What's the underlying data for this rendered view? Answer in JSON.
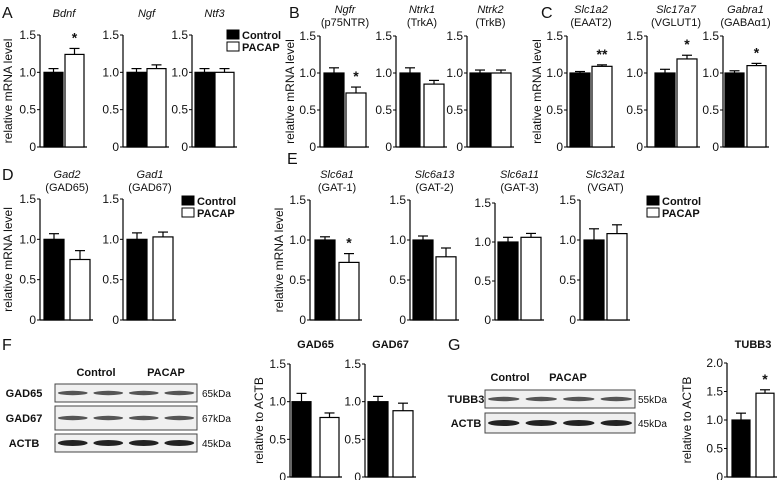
{
  "legend": {
    "control": "Control",
    "pacap": "PACAP"
  },
  "colors": {
    "control": "#000000",
    "pacap": "#ffffff"
  },
  "panels": [
    "A",
    "B",
    "C",
    "D",
    "E",
    "F",
    "G"
  ],
  "ylabels": {
    "mrna": "relative mRNA level",
    "actb": "relative to ACTB"
  },
  "blots": {
    "F": {
      "groups": [
        "Control",
        "PACAP"
      ],
      "rows": [
        {
          "label": "GAD65",
          "size": "65kDa"
        },
        {
          "label": "GAD67",
          "size": "67kDa"
        },
        {
          "label": "ACTB",
          "size": "45kDa"
        }
      ]
    },
    "G": {
      "groups": [
        "Control",
        "PACAP"
      ],
      "rows": [
        {
          "label": "TUBB3",
          "size": "55kDa"
        },
        {
          "label": "ACTB",
          "size": "45kDa"
        }
      ]
    }
  },
  "chart_data": [
    {
      "type": "bar",
      "panel": "A",
      "title": "Bdnf",
      "subtitle": "",
      "ylabel": "relative mRNA level",
      "ylim": [
        0,
        1.5
      ],
      "yticks": [
        "0",
        "0.5",
        "1.0",
        "1.5"
      ],
      "categories": [
        "Control",
        "PACAP"
      ],
      "values": [
        1.0,
        1.24
      ],
      "errors": [
        0.05,
        0.08
      ],
      "significance": "*"
    },
    {
      "type": "bar",
      "panel": "A",
      "title": "Ngf",
      "subtitle": "",
      "ylabel": "",
      "ylim": [
        0,
        1.5
      ],
      "yticks": [
        "0",
        "0.5",
        "1.0",
        "1.5"
      ],
      "categories": [
        "Control",
        "PACAP"
      ],
      "values": [
        1.0,
        1.05
      ],
      "errors": [
        0.05,
        0.05
      ],
      "significance": ""
    },
    {
      "type": "bar",
      "panel": "A",
      "title": "Ntf3",
      "subtitle": "",
      "ylabel": "",
      "ylim": [
        0,
        1.5
      ],
      "yticks": [
        "0",
        "0.5",
        "1.0",
        "1.5"
      ],
      "categories": [
        "Control",
        "PACAP"
      ],
      "values": [
        1.0,
        1.0
      ],
      "errors": [
        0.05,
        0.05
      ],
      "significance": ""
    },
    {
      "type": "bar",
      "panel": "B",
      "title": "Ngfr",
      "subtitle": "(p75NTR)",
      "ylabel": "relative mRNA level",
      "ylim": [
        0,
        1.5
      ],
      "yticks": [
        "0",
        "0.5",
        "1.0",
        "1.5"
      ],
      "categories": [
        "Control",
        "PACAP"
      ],
      "values": [
        1.0,
        0.73
      ],
      "errors": [
        0.07,
        0.08
      ],
      "significance": "*"
    },
    {
      "type": "bar",
      "panel": "B",
      "title": "Ntrk1",
      "subtitle": "(TrkA)",
      "ylabel": "",
      "ylim": [
        0,
        1.5
      ],
      "yticks": [
        "0",
        "0.5",
        "1.0",
        "1.5"
      ],
      "categories": [
        "Control",
        "PACAP"
      ],
      "values": [
        1.0,
        0.85
      ],
      "errors": [
        0.07,
        0.05
      ],
      "significance": ""
    },
    {
      "type": "bar",
      "panel": "B",
      "title": "Ntrk2",
      "subtitle": "(TrkB)",
      "ylabel": "",
      "ylim": [
        0,
        1.5
      ],
      "yticks": [
        "0",
        "0.5",
        "1.0",
        "1.5"
      ],
      "categories": [
        "Control",
        "PACAP"
      ],
      "values": [
        1.0,
        1.0
      ],
      "errors": [
        0.04,
        0.04
      ],
      "significance": ""
    },
    {
      "type": "bar",
      "panel": "C",
      "title": "Slc1a2",
      "subtitle": "(EAAT2)",
      "ylabel": "relative mRNA level",
      "ylim": [
        0,
        1.5
      ],
      "yticks": [
        "0",
        "0.5",
        "1.0",
        "1.5"
      ],
      "categories": [
        "Control",
        "PACAP"
      ],
      "values": [
        1.0,
        1.09
      ],
      "errors": [
        0.02,
        0.02
      ],
      "significance": "**"
    },
    {
      "type": "bar",
      "panel": "C",
      "title": "Slc17a7",
      "subtitle": "(VGLUT1)",
      "ylabel": "",
      "ylim": [
        0,
        1.5
      ],
      "yticks": [
        "0",
        "0.5",
        "1.0",
        "1.5"
      ],
      "categories": [
        "Control",
        "PACAP"
      ],
      "values": [
        1.0,
        1.19
      ],
      "errors": [
        0.05,
        0.05
      ],
      "significance": "*"
    },
    {
      "type": "bar",
      "panel": "C",
      "title": "Gabra1",
      "subtitle": "(GABAα1)",
      "ylabel": "",
      "ylim": [
        0,
        1.5
      ],
      "yticks": [
        "0",
        "0.5",
        "1.0",
        "1.5"
      ],
      "categories": [
        "Control",
        "PACAP"
      ],
      "values": [
        1.0,
        1.1
      ],
      "errors": [
        0.03,
        0.03
      ],
      "significance": "*"
    },
    {
      "type": "bar",
      "panel": "D",
      "title": "Gad2",
      "subtitle": "(GAD65)",
      "ylabel": "relative mRNA level",
      "ylim": [
        0,
        1.5
      ],
      "yticks": [
        "0",
        "0.5",
        "1.0",
        "1.5"
      ],
      "categories": [
        "Control",
        "PACAP"
      ],
      "values": [
        1.0,
        0.75
      ],
      "errors": [
        0.07,
        0.11
      ],
      "significance": ""
    },
    {
      "type": "bar",
      "panel": "D",
      "title": "Gad1",
      "subtitle": "(GAD67)",
      "ylabel": "",
      "ylim": [
        0,
        1.5
      ],
      "yticks": [
        "0",
        "0.5",
        "1.0",
        "1.5"
      ],
      "categories": [
        "Control",
        "PACAP"
      ],
      "values": [
        1.0,
        1.03
      ],
      "errors": [
        0.08,
        0.06
      ],
      "significance": ""
    },
    {
      "type": "bar",
      "panel": "E",
      "title": "Slc6a1",
      "subtitle": "(GAT-1)",
      "ylabel": "relative mRNA level",
      "ylim": [
        0,
        1.5
      ],
      "yticks": [
        "0",
        "0.5",
        "1.0",
        "1.5"
      ],
      "categories": [
        "Control",
        "PACAP"
      ],
      "values": [
        1.0,
        0.72
      ],
      "errors": [
        0.04,
        0.11
      ],
      "significance": "*"
    },
    {
      "type": "bar",
      "panel": "E",
      "title": "Slc6a13",
      "subtitle": "(GAT-2)",
      "ylabel": "",
      "ylim": [
        0,
        1.5
      ],
      "yticks": [
        "0",
        "0.5",
        "1.0",
        "1.5"
      ],
      "categories": [
        "Control",
        "PACAP"
      ],
      "values": [
        1.0,
        0.79
      ],
      "errors": [
        0.05,
        0.11
      ],
      "significance": ""
    },
    {
      "type": "bar",
      "panel": "E",
      "title": "Slc6a11",
      "subtitle": "(GAT-3)",
      "ylabel": "",
      "ylim": [
        0,
        1.5
      ],
      "yticks": [
        "0",
        "0.5",
        "1.0",
        "1.5"
      ],
      "categories": [
        "Control",
        "PACAP"
      ],
      "values": [
        1.0,
        1.06
      ],
      "errors": [
        0.06,
        0.05
      ],
      "significance": ""
    },
    {
      "type": "bar",
      "panel": "E",
      "title": "Slc32a1",
      "subtitle": "(VGAT)",
      "ylabel": "",
      "ylim": [
        0,
        1.5
      ],
      "yticks": [
        "0",
        "0.5",
        "1.0",
        "1.5"
      ],
      "categories": [
        "Control",
        "PACAP"
      ],
      "values": [
        1.0,
        1.08
      ],
      "errors": [
        0.14,
        0.11
      ],
      "significance": ""
    },
    {
      "type": "bar",
      "panel": "F",
      "title": "GAD65",
      "subtitle": "",
      "ylabel": "relative to ACTB",
      "ylim": [
        0,
        1.5
      ],
      "yticks": [
        "0",
        "0.5",
        "1.0",
        "1.5"
      ],
      "categories": [
        "Control",
        "PACAP"
      ],
      "values": [
        1.0,
        0.79
      ],
      "errors": [
        0.11,
        0.06
      ],
      "significance": ""
    },
    {
      "type": "bar",
      "panel": "F",
      "title": "GAD67",
      "subtitle": "",
      "ylabel": "",
      "ylim": [
        0,
        1.5
      ],
      "yticks": [
        "0",
        "0.5",
        "1.0",
        "1.5"
      ],
      "categories": [
        "Control",
        "PACAP"
      ],
      "values": [
        1.0,
        0.88
      ],
      "errors": [
        0.07,
        0.1
      ],
      "significance": ""
    },
    {
      "type": "bar",
      "panel": "G",
      "title": "TUBB3",
      "subtitle": "",
      "ylabel": "relative to ACTB",
      "ylim": [
        0,
        2.0
      ],
      "yticks": [
        "0",
        "0.5",
        "1.0",
        "1.5",
        "2.0"
      ],
      "categories": [
        "Control",
        "PACAP"
      ],
      "values": [
        1.0,
        1.47
      ],
      "errors": [
        0.12,
        0.06
      ],
      "significance": "*"
    }
  ]
}
